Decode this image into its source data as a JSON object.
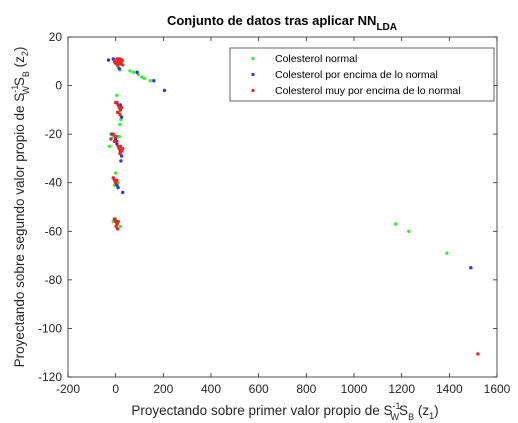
{
  "chart_data": {
    "type": "scatter",
    "title": {
      "main": "Conjunto de datos tras aplicar NN",
      "sub": "LDA"
    },
    "xlabel": {
      "prefix": "Proyectando sobre primer valor propio de S",
      "w": "W",
      "exp": "-1",
      "mid": "S",
      "b": "B",
      "open": " (z",
      "idx": "1",
      "close": ")"
    },
    "ylabel": {
      "prefix": "Proyectando sobre segundo valor propio de S",
      "w": "W",
      "exp": "-1",
      "mid": "S",
      "b": "B",
      "open": " (z",
      "idx": "2",
      "close": ")"
    },
    "xlim": [
      -200,
      1600
    ],
    "ylim": [
      -120,
      20
    ],
    "xticks": [
      -200,
      0,
      200,
      400,
      600,
      800,
      1000,
      1200,
      1400,
      1600
    ],
    "yticks": [
      -120,
      -100,
      -80,
      -60,
      -40,
      -20,
      0,
      20
    ],
    "grid": false,
    "legend_position": "top-right",
    "series": [
      {
        "name": "Colesterol normal",
        "color": "#33ee33",
        "points": [
          [
            -5,
            9.5
          ],
          [
            8,
            8
          ],
          [
            18,
            6.5
          ],
          [
            12,
            7.5
          ],
          [
            25,
            9
          ],
          [
            60,
            6
          ],
          [
            75,
            5.5
          ],
          [
            95,
            4.5
          ],
          [
            110,
            3.5
          ],
          [
            120,
            3
          ],
          [
            145,
            2
          ],
          [
            5,
            -4
          ],
          [
            10,
            -8
          ],
          [
            15,
            -11
          ],
          [
            22,
            -14
          ],
          [
            18,
            -16
          ],
          [
            -20,
            -20
          ],
          [
            -10,
            -21
          ],
          [
            5,
            -21
          ],
          [
            15,
            -21
          ],
          [
            -25,
            -25
          ],
          [
            0,
            -36
          ],
          [
            -5,
            -41
          ],
          [
            10,
            -40
          ],
          [
            0,
            -55
          ],
          [
            -10,
            -56
          ],
          [
            8,
            -57
          ],
          [
            20,
            -58
          ],
          [
            1175,
            -57
          ],
          [
            1230,
            -60
          ],
          [
            1390,
            -69
          ]
        ]
      },
      {
        "name": "Colesterol por encima de lo normal",
        "color": "#3333ee",
        "points": [
          [
            -30,
            10.5
          ],
          [
            -10,
            11
          ],
          [
            5,
            9
          ],
          [
            15,
            7
          ],
          [
            90,
            5.5
          ],
          [
            160,
            2
          ],
          [
            205,
            -2
          ],
          [
            5,
            -7
          ],
          [
            15,
            -9
          ],
          [
            20,
            -8
          ],
          [
            25,
            -13
          ],
          [
            -15,
            -20
          ],
          [
            0,
            -22
          ],
          [
            5,
            -24
          ],
          [
            20,
            -27
          ],
          [
            25,
            -29
          ],
          [
            22,
            -31
          ],
          [
            -10,
            -38
          ],
          [
            5,
            -41
          ],
          [
            10,
            -42
          ],
          [
            30,
            -44
          ],
          [
            -5,
            -55
          ],
          [
            10,
            -56
          ],
          [
            1490,
            -75
          ]
        ]
      },
      {
        "name": "Colesterol muy por encima de lo normal",
        "color": "#ee2222",
        "points": [
          [
            -5,
            10
          ],
          [
            5,
            11
          ],
          [
            10,
            10
          ],
          [
            15,
            9.5
          ],
          [
            20,
            9
          ],
          [
            25,
            10
          ],
          [
            30,
            8.5
          ],
          [
            0,
            9.2
          ],
          [
            18,
            11
          ],
          [
            8,
            8.5
          ],
          [
            28,
            10.5
          ],
          [
            12,
            11
          ],
          [
            0,
            -7
          ],
          [
            10,
            -8
          ],
          [
            15,
            -9
          ],
          [
            20,
            -10
          ],
          [
            25,
            -9
          ],
          [
            8,
            -11
          ],
          [
            18,
            -12
          ],
          [
            -10,
            -20
          ],
          [
            0,
            -21
          ],
          [
            -20,
            -22
          ],
          [
            -5,
            -23
          ],
          [
            5,
            -23
          ],
          [
            10,
            -25
          ],
          [
            15,
            -26
          ],
          [
            20,
            -25
          ],
          [
            25,
            -27
          ],
          [
            30,
            -26
          ],
          [
            18,
            -28
          ],
          [
            -10,
            -38
          ],
          [
            -5,
            -39
          ],
          [
            5,
            -39
          ],
          [
            0,
            -40
          ],
          [
            -5,
            -55
          ],
          [
            0,
            -56
          ],
          [
            5,
            -57
          ],
          [
            10,
            -56
          ],
          [
            2,
            -58
          ],
          [
            8,
            -59
          ],
          [
            1520,
            -110.5
          ]
        ]
      }
    ]
  }
}
